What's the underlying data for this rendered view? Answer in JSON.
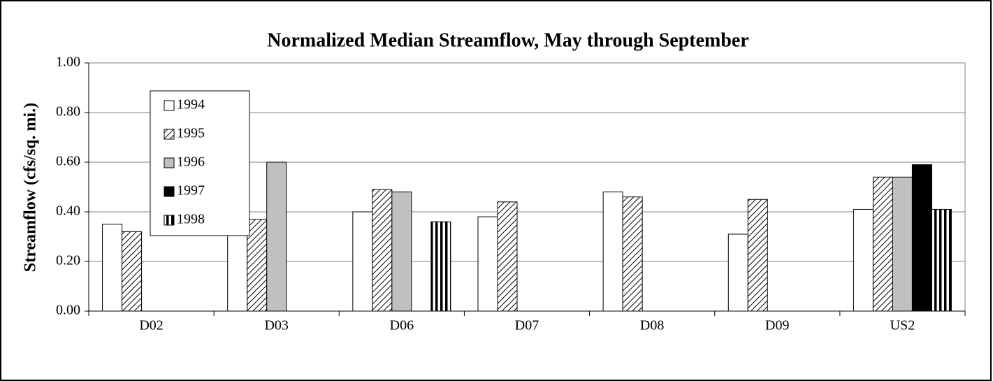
{
  "chart_data": {
    "type": "bar",
    "title": "Normalized Median Streamflow, May through September",
    "y_label": "Streamflow (cfs/sq. mi.)",
    "categories": [
      "D02",
      "D03",
      "D06",
      "D07",
      "D08",
      "D09",
      "US2"
    ],
    "series": [
      {
        "name": "1994",
        "color": "#ffffff",
        "pattern": "solid",
        "values": [
          0.35,
          0.34,
          0.4,
          0.38,
          0.48,
          0.31,
          0.41
        ]
      },
      {
        "name": "1995",
        "color": "#ffffff",
        "pattern": "diagonal",
        "values": [
          0.32,
          0.37,
          0.49,
          0.44,
          0.46,
          0.45,
          0.54
        ]
      },
      {
        "name": "1996",
        "color": "#c0c0c0",
        "pattern": "solid",
        "values": [
          null,
          0.6,
          0.48,
          null,
          null,
          null,
          0.54
        ]
      },
      {
        "name": "1997",
        "color": "#000000",
        "pattern": "solid",
        "values": [
          null,
          null,
          null,
          null,
          null,
          null,
          0.59
        ]
      },
      {
        "name": "1998",
        "color": "#ffffff",
        "pattern": "vertical",
        "values": [
          null,
          null,
          0.36,
          null,
          null,
          null,
          0.41
        ]
      }
    ],
    "ylim": [
      0,
      1
    ],
    "yticks": [
      {
        "value": 0,
        "label": "0.00"
      },
      {
        "value": 0.2,
        "label": "0.20"
      },
      {
        "value": 0.4,
        "label": "0.40"
      },
      {
        "value": 0.6,
        "label": "0.60"
      },
      {
        "value": 0.8,
        "label": "0.80"
      },
      {
        "value": 1,
        "label": "1.00"
      }
    ],
    "grid": true,
    "legend": "upper-left"
  }
}
